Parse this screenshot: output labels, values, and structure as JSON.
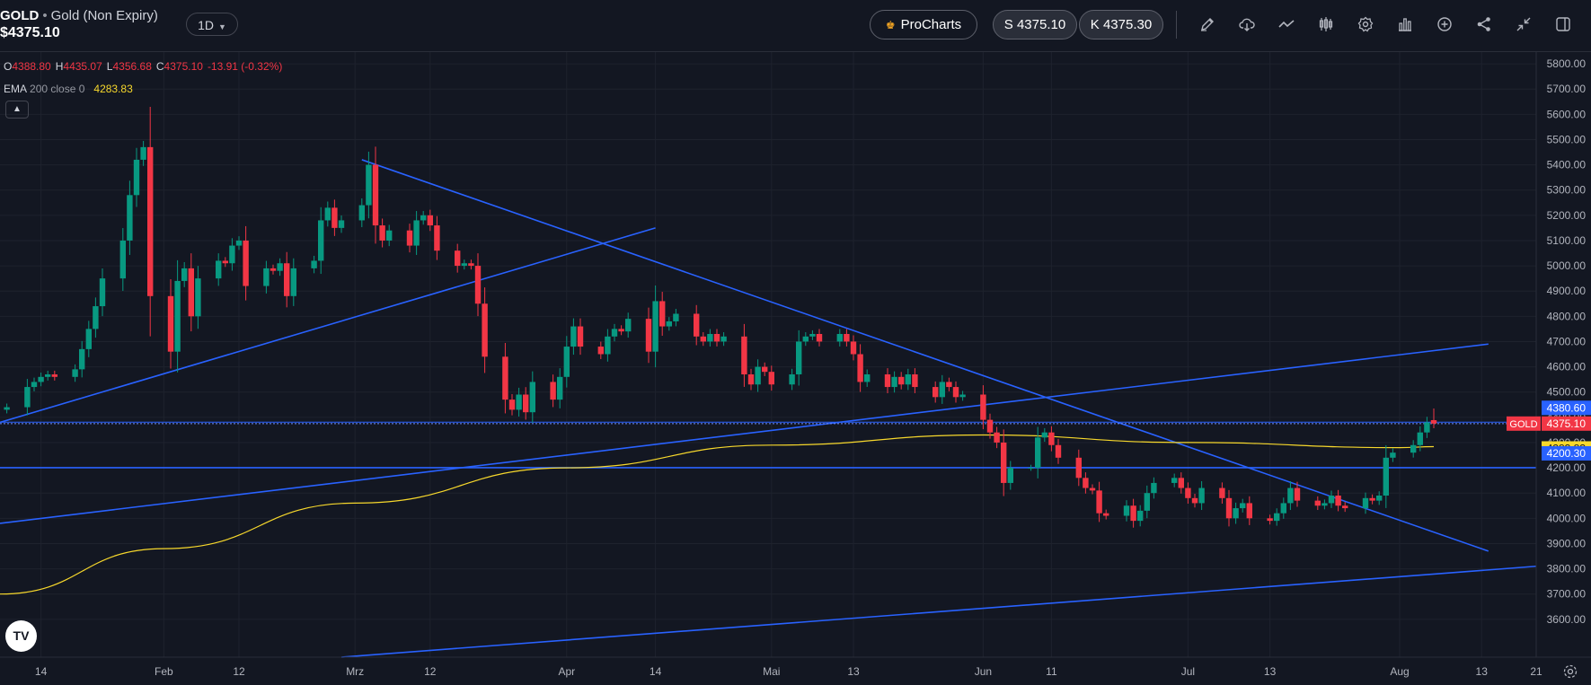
{
  "header": {
    "symbol": "GOLD",
    "separator": "•",
    "instrument_name": "Gold (Non Expiry)",
    "last_price": "$4375.10",
    "timeframe": "1D",
    "prochart_label": "ProCharts",
    "sell_label": "S 4375.10",
    "buy_label": "K 4375.30",
    "tools": [
      "pencil-icon",
      "cloud-icon",
      "trend-icon",
      "candles-icon",
      "gear-icon",
      "bar-chart-icon",
      "plus-circle-icon",
      "share-icon",
      "collapse-icon",
      "panel-icon"
    ]
  },
  "ohlc": {
    "o_label": "O",
    "o": "4388.80",
    "h_label": "H",
    "h": "4435.07",
    "l_label": "L",
    "l": "4356.68",
    "c_label": "C",
    "c": "4375.10",
    "change": "-13.91 (-0.32%)"
  },
  "ema": {
    "label": "EMA",
    "params": "200 close 0",
    "value": "4283.83"
  },
  "logo_text": "TV",
  "colors": {
    "background": "#131722",
    "up": "#089981",
    "down": "#f23645",
    "ema": "#f7d82c",
    "trendline": "#2962ff",
    "grid": "#1e222d",
    "axis_text": "#b2b5be"
  },
  "chart_data": {
    "type": "candlestick",
    "ylim": [
      3450,
      5850
    ],
    "y_ticks": [
      "5800.00",
      "5700.00",
      "5600.00",
      "5500.00",
      "5400.00",
      "5300.00",
      "5200.00",
      "5100.00",
      "5000.00",
      "4900.00",
      "4800.00",
      "4700.00",
      "4600.00",
      "4500.00",
      "4400.00",
      "4300.00",
      "4200.00",
      "4100.00",
      "4000.00",
      "3900.00",
      "3800.00",
      "3700.00",
      "3600.00"
    ],
    "x_ticks": [
      {
        "label": "14",
        "date": "2026-01-14"
      },
      {
        "label": "Feb",
        "date": "2026-02-01"
      },
      {
        "label": "12",
        "date": "2026-02-12"
      },
      {
        "label": "Mrz",
        "date": "2026-03-01"
      },
      {
        "label": "12",
        "date": "2026-03-12"
      },
      {
        "label": "Apr",
        "date": "2026-04-01"
      },
      {
        "label": "14",
        "date": "2026-04-14"
      },
      {
        "label": "Mai",
        "date": "2026-05-01"
      },
      {
        "label": "13",
        "date": "2026-05-13"
      },
      {
        "label": "Jun",
        "date": "2026-06-01"
      },
      {
        "label": "11",
        "date": "2026-06-11"
      },
      {
        "label": "Jul",
        "date": "2026-07-01"
      },
      {
        "label": "13",
        "date": "2026-07-13"
      },
      {
        "label": "Aug",
        "date": "2026-08-01"
      },
      {
        "label": "13",
        "date": "2026-08-13"
      },
      {
        "label": "21",
        "date": "2026-08-21"
      }
    ],
    "date_range": [
      "2026-01-08",
      "2026-08-21"
    ],
    "closes": [
      [
        "2026-01-09",
        4440
      ],
      [
        "2026-01-12",
        4520
      ],
      [
        "2026-01-13",
        4540
      ],
      [
        "2026-01-14",
        4560
      ],
      [
        "2026-01-15",
        4570
      ],
      [
        "2026-01-16",
        4560
      ],
      [
        "2026-01-19",
        4590
      ],
      [
        "2026-01-20",
        4670
      ],
      [
        "2026-01-21",
        4750
      ],
      [
        "2026-01-22",
        4840
      ],
      [
        "2026-01-23",
        4950
      ],
      [
        "2026-01-26",
        5100
      ],
      [
        "2026-01-27",
        5280
      ],
      [
        "2026-01-28",
        5420
      ],
      [
        "2026-01-29",
        5470
      ],
      [
        "2026-01-30",
        4880
      ],
      [
        "2026-02-02",
        4660
      ],
      [
        "2026-02-03",
        4940
      ],
      [
        "2026-02-04",
        4990
      ],
      [
        "2026-02-05",
        4800
      ],
      [
        "2026-02-06",
        4950
      ],
      [
        "2026-02-09",
        5020
      ],
      [
        "2026-02-10",
        5010
      ],
      [
        "2026-02-11",
        5080
      ],
      [
        "2026-02-12",
        5100
      ],
      [
        "2026-02-13",
        4920
      ],
      [
        "2026-02-16",
        4990
      ],
      [
        "2026-02-17",
        4980
      ],
      [
        "2026-02-18",
        5010
      ],
      [
        "2026-02-19",
        4880
      ],
      [
        "2026-02-20",
        4990
      ],
      [
        "2026-02-23",
        5020
      ],
      [
        "2026-02-24",
        5180
      ],
      [
        "2026-02-25",
        5230
      ],
      [
        "2026-02-26",
        5150
      ],
      [
        "2026-02-27",
        5180
      ],
      [
        "2026-03-02",
        5240
      ],
      [
        "2026-03-03",
        5400
      ],
      [
        "2026-03-04",
        5160
      ],
      [
        "2026-03-05",
        5100
      ],
      [
        "2026-03-06",
        5140
      ],
      [
        "2026-03-09",
        5080
      ],
      [
        "2026-03-10",
        5180
      ],
      [
        "2026-03-11",
        5200
      ],
      [
        "2026-03-12",
        5160
      ],
      [
        "2026-03-13",
        5060
      ],
      [
        "2026-03-16",
        5000
      ],
      [
        "2026-03-17",
        5010
      ],
      [
        "2026-03-18",
        5000
      ],
      [
        "2026-03-19",
        4850
      ],
      [
        "2026-03-20",
        4640
      ],
      [
        "2026-03-23",
        4470
      ],
      [
        "2026-03-24",
        4430
      ],
      [
        "2026-03-25",
        4490
      ],
      [
        "2026-03-26",
        4420
      ],
      [
        "2026-03-27",
        4540
      ],
      [
        "2026-03-30",
        4470
      ],
      [
        "2026-03-31",
        4560
      ],
      [
        "2026-04-01",
        4680
      ],
      [
        "2026-04-02",
        4760
      ],
      [
        "2026-04-03",
        4680
      ],
      [
        "2026-04-06",
        4650
      ],
      [
        "2026-04-07",
        4720
      ],
      [
        "2026-04-08",
        4750
      ],
      [
        "2026-04-09",
        4740
      ],
      [
        "2026-04-10",
        4790
      ],
      [
        "2026-04-13",
        4660
      ],
      [
        "2026-04-14",
        4860
      ],
      [
        "2026-04-15",
        4760
      ],
      [
        "2026-04-16",
        4780
      ],
      [
        "2026-04-17",
        4810
      ],
      [
        "2026-04-20",
        4720
      ],
      [
        "2026-04-21",
        4700
      ],
      [
        "2026-04-22",
        4730
      ],
      [
        "2026-04-23",
        4700
      ],
      [
        "2026-04-24",
        4720
      ],
      [
        "2026-04-27",
        4570
      ],
      [
        "2026-04-28",
        4530
      ],
      [
        "2026-04-29",
        4600
      ],
      [
        "2026-04-30",
        4580
      ],
      [
        "2026-05-01",
        4530
      ],
      [
        "2026-05-04",
        4570
      ],
      [
        "2026-05-05",
        4700
      ],
      [
        "2026-05-06",
        4720
      ],
      [
        "2026-05-07",
        4730
      ],
      [
        "2026-05-08",
        4700
      ],
      [
        "2026-05-11",
        4730
      ],
      [
        "2026-05-12",
        4700
      ],
      [
        "2026-05-13",
        4650
      ],
      [
        "2026-05-14",
        4540
      ],
      [
        "2026-05-15",
        4570
      ],
      [
        "2026-05-18",
        4520
      ],
      [
        "2026-05-19",
        4560
      ],
      [
        "2026-05-20",
        4530
      ],
      [
        "2026-05-21",
        4570
      ],
      [
        "2026-05-22",
        4520
      ],
      [
        "2026-05-25",
        4480
      ],
      [
        "2026-05-26",
        4540
      ],
      [
        "2026-05-27",
        4520
      ],
      [
        "2026-05-28",
        4480
      ],
      [
        "2026-05-29",
        4490
      ],
      [
        "2026-06-01",
        4390
      ],
      [
        "2026-06-02",
        4340
      ],
      [
        "2026-06-03",
        4300
      ],
      [
        "2026-06-04",
        4140
      ],
      [
        "2026-06-05",
        4200
      ],
      [
        "2026-06-08",
        4200
      ],
      [
        "2026-06-09",
        4320
      ],
      [
        "2026-06-10",
        4340
      ],
      [
        "2026-06-11",
        4290
      ],
      [
        "2026-06-12",
        4240
      ],
      [
        "2026-06-15",
        4160
      ],
      [
        "2026-06-16",
        4120
      ],
      [
        "2026-06-17",
        4110
      ],
      [
        "2026-06-18",
        4020
      ],
      [
        "2026-06-19",
        4010
      ],
      [
        "2026-06-22",
        4050
      ],
      [
        "2026-06-23",
        3990
      ],
      [
        "2026-06-24",
        4030
      ],
      [
        "2026-06-25",
        4100
      ],
      [
        "2026-06-26",
        4140
      ],
      [
        "2026-06-29",
        4160
      ],
      [
        "2026-06-30",
        4120
      ],
      [
        "2026-07-01",
        4080
      ],
      [
        "2026-07-02",
        4060
      ],
      [
        "2026-07-03",
        4120
      ],
      [
        "2026-07-06",
        4080
      ],
      [
        "2026-07-07",
        4000
      ],
      [
        "2026-07-08",
        4040
      ],
      [
        "2026-07-09",
        4060
      ],
      [
        "2026-07-10",
        4000
      ],
      [
        "2026-07-13",
        3990
      ],
      [
        "2026-07-14",
        4020
      ],
      [
        "2026-07-15",
        4060
      ],
      [
        "2026-07-16",
        4120
      ],
      [
        "2026-07-17",
        4070
      ],
      [
        "2026-07-20",
        4050
      ],
      [
        "2026-07-21",
        4060
      ],
      [
        "2026-07-22",
        4090
      ],
      [
        "2026-07-23",
        4050
      ],
      [
        "2026-07-24",
        4040
      ],
      [
        "2026-07-27",
        4080
      ],
      [
        "2026-07-28",
        4070
      ],
      [
        "2026-07-29",
        4090
      ],
      [
        "2026-07-30",
        4240
      ],
      [
        "2026-07-31",
        4260
      ],
      [
        "2026-08-03",
        4290
      ],
      [
        "2026-08-04",
        4340
      ],
      [
        "2026-08-05",
        4380
      ],
      [
        "2026-08-06",
        4375.1
      ]
    ],
    "current_candle": {
      "open": 4388.8,
      "high": 4435.07,
      "low": 4356.68,
      "close": 4375.1
    },
    "ema": [
      [
        "2026-01-08",
        3700
      ],
      [
        "2026-02-01",
        3880
      ],
      [
        "2026-03-01",
        4060
      ],
      [
        "2026-04-01",
        4200
      ],
      [
        "2026-05-01",
        4290
      ],
      [
        "2026-06-01",
        4330
      ],
      [
        "2026-07-01",
        4300
      ],
      [
        "2026-08-01",
        4280
      ],
      [
        "2026-08-06",
        4283.83
      ]
    ],
    "price_lines": [
      4380.6,
      4375.1,
      4200.3
    ],
    "trendlines": [
      [
        [
          "2026-01-08",
          4380
        ],
        [
          "2026-04-14",
          5150
        ]
      ],
      [
        [
          "2026-03-02",
          5420
        ],
        [
          "2026-08-14",
          3870
        ]
      ],
      [
        [
          "2026-01-08",
          3980
        ],
        [
          "2026-08-14",
          4690
        ]
      ],
      [
        [
          "2026-02-27",
          3450
        ],
        [
          "2026-08-21",
          3810
        ]
      ]
    ],
    "axis_labels": {
      "last_price_label": "GOLD",
      "tags": [
        {
          "value": "4380.60",
          "price": 4380.6,
          "kind": "line"
        },
        {
          "value": "4375.10",
          "price": 4375.1,
          "kind": "price"
        },
        {
          "value": "4283.83",
          "price": 4283.83,
          "kind": "ema"
        },
        {
          "value": "4200.30",
          "price": 4200.3,
          "kind": "line"
        }
      ]
    }
  }
}
